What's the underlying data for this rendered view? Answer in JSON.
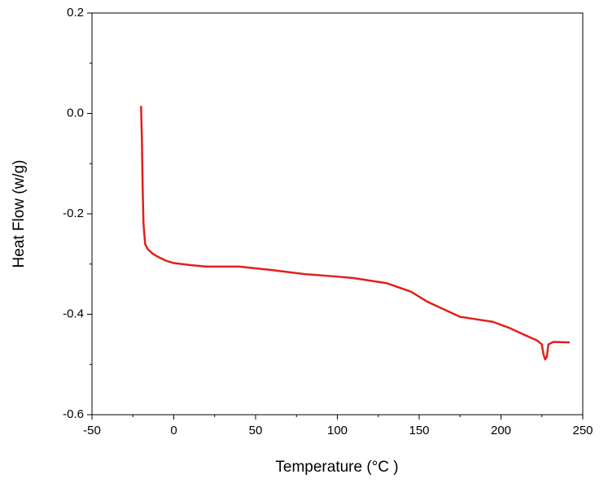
{
  "chart_data": {
    "type": "line",
    "x_label": "Temperature (°C )",
    "y_label": "Heat Flow (w/g)",
    "xlim": [
      -50,
      250
    ],
    "xticks": [
      -50,
      0,
      50,
      100,
      150,
      200,
      250
    ],
    "xminorticks": [
      -25,
      25,
      75,
      125,
      175,
      225
    ],
    "ylim": [
      -0.6,
      0.2
    ],
    "yticks": [
      -0.6,
      -0.4,
      -0.2,
      {
        "value": 0,
        "label": "0.0"
      },
      0.2
    ],
    "yminorticks": [
      -0.5,
      -0.3,
      -0.1,
      0.1
    ],
    "series": [
      {
        "color": "#e0201b",
        "x": [
          -20,
          -19.5,
          -19,
          -18.5,
          -17.5,
          -16,
          -13,
          -10,
          -5,
          0,
          10,
          20,
          40,
          60,
          80,
          100,
          110,
          130,
          145,
          155,
          165,
          175,
          185,
          195,
          205,
          215,
          222,
          225,
          226,
          227,
          228,
          229,
          232,
          242
        ],
        "values": [
          0.015,
          -0.05,
          -0.15,
          -0.22,
          -0.26,
          -0.27,
          -0.279,
          -0.285,
          -0.293,
          -0.298,
          -0.302,
          -0.305,
          -0.305,
          -0.312,
          -0.32,
          -0.325,
          -0.328,
          -0.338,
          -0.355,
          -0.375,
          -0.39,
          -0.405,
          -0.41,
          -0.415,
          -0.427,
          -0.442,
          -0.452,
          -0.46,
          -0.48,
          -0.49,
          -0.485,
          -0.46,
          -0.455,
          -0.456
        ]
      }
    ]
  }
}
